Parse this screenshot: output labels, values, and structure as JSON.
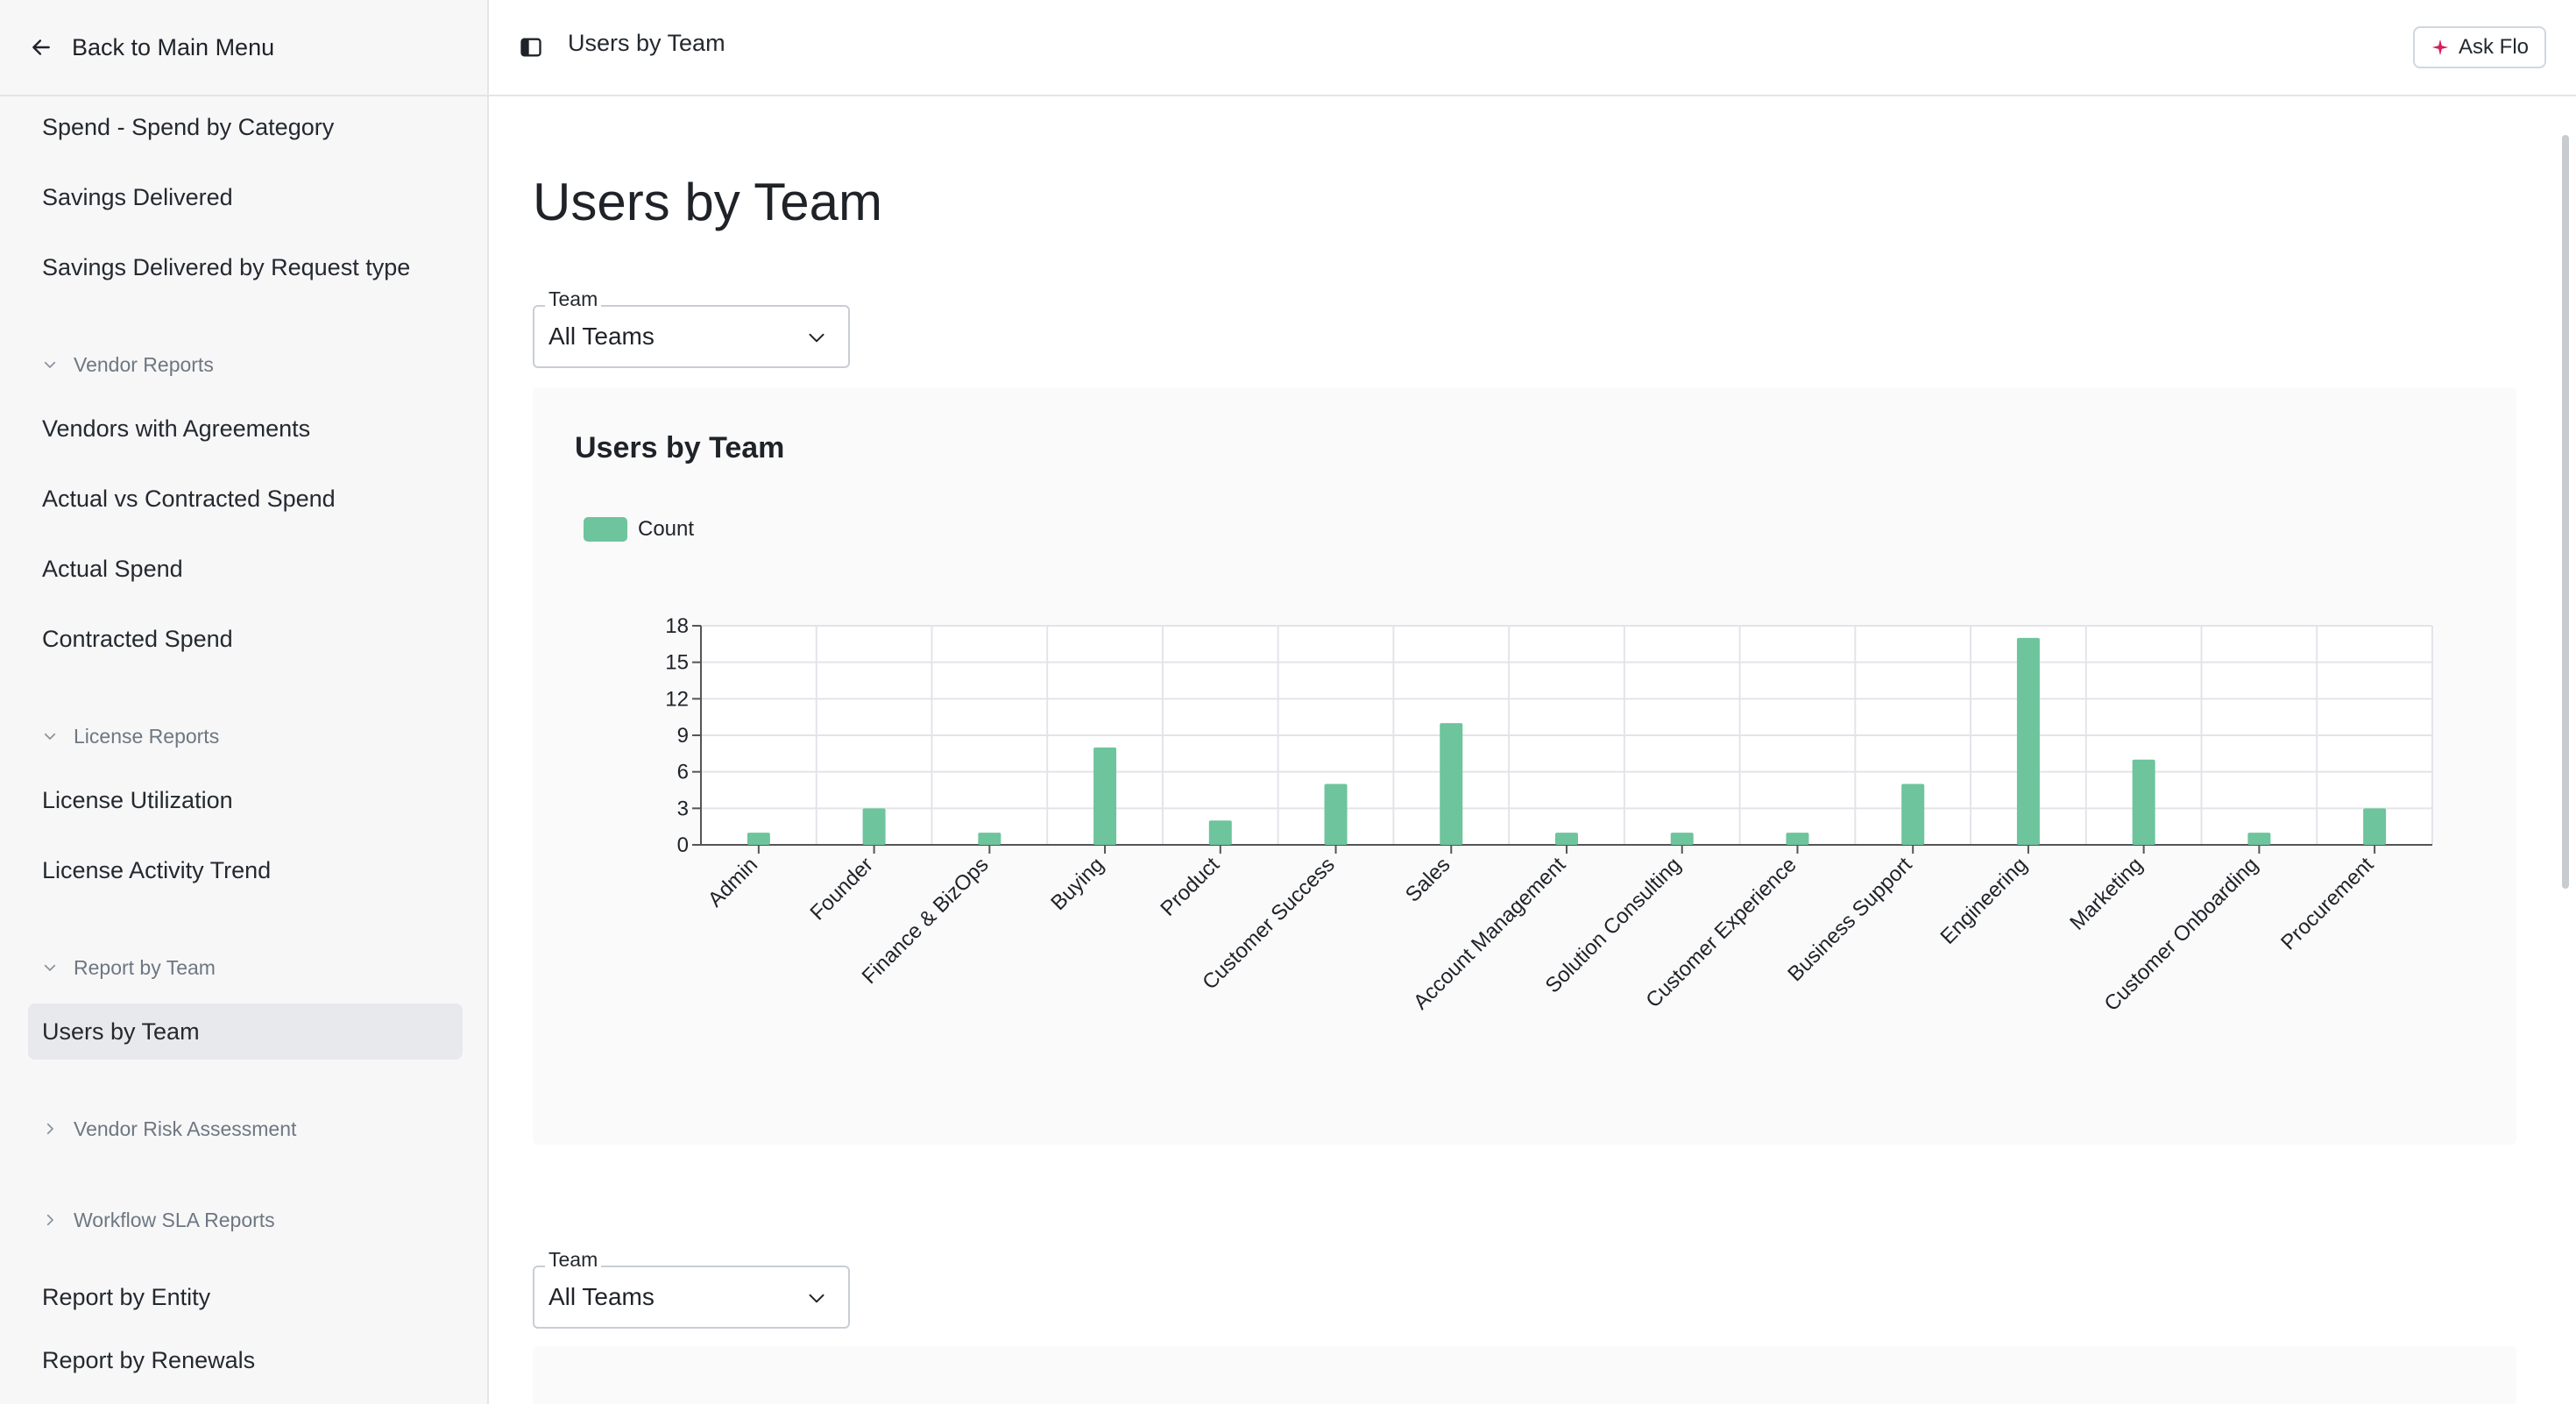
{
  "sidebar": {
    "back_label": "Back to Main Menu",
    "items": [
      {
        "label": "Spend - Spend by Category"
      },
      {
        "label": "Savings Delivered"
      },
      {
        "label": "Savings Delivered by Request type"
      },
      {
        "label": "Vendors with Agreements"
      },
      {
        "label": "Actual vs Contracted Spend"
      },
      {
        "label": "Actual Spend"
      },
      {
        "label": "Contracted Spend"
      },
      {
        "label": "License Utilization"
      },
      {
        "label": "License Activity Trend"
      },
      {
        "label": "Users by Team"
      },
      {
        "label": "Report by Entity"
      },
      {
        "label": "Report by Renewals"
      }
    ],
    "sections": [
      {
        "label": "Vendor Reports",
        "expanded": true
      },
      {
        "label": "License Reports",
        "expanded": true
      },
      {
        "label": "Report by Team",
        "expanded": true
      },
      {
        "label": "Vendor Risk Assessment",
        "expanded": false
      },
      {
        "label": "Workflow SLA Reports",
        "expanded": false
      }
    ],
    "active_item": "Users by Team"
  },
  "header": {
    "title": "Users by Team",
    "ask_label": "Ask Flo",
    "ask_icon_color": "#d1205a"
  },
  "main": {
    "title": "Users by Team",
    "filters": [
      {
        "label": "Team",
        "value": "All Teams"
      },
      {
        "label": "Team",
        "value": "All Teams"
      }
    ]
  },
  "chart_data": {
    "type": "bar",
    "title": "Users by Team",
    "xlabel": "",
    "ylabel": "",
    "categories": [
      "Admin",
      "Founder",
      "Finance & BizOps",
      "Buying",
      "Product",
      "Customer Success",
      "Sales",
      "Account Management",
      "Solution Consulting",
      "Customer Experience",
      "Business Support",
      "Engineering",
      "Marketing",
      "Customer Onboarding",
      "Procurement"
    ],
    "series": [
      {
        "name": "Count",
        "color": "#6ec49c",
        "values": [
          1,
          3,
          1,
          8,
          2,
          5,
          10,
          1,
          1,
          1,
          5,
          17,
          7,
          1,
          3
        ]
      }
    ],
    "ylim": [
      0,
      18
    ],
    "yticks": [
      0,
      3,
      6,
      9,
      12,
      15,
      18
    ],
    "grid": true,
    "legend": "top-left"
  }
}
